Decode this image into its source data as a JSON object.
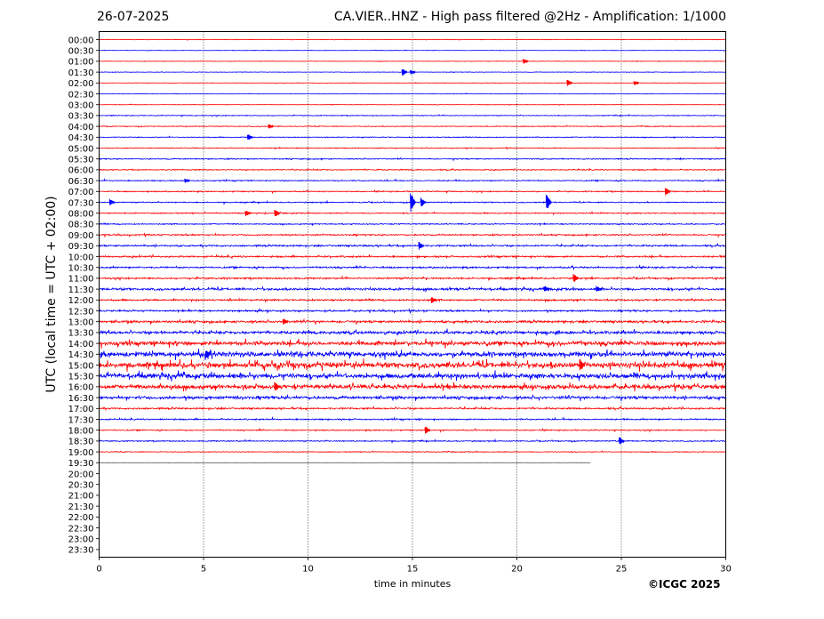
{
  "header": {
    "date": "26-07-2025",
    "title": "CA.VIER..HNZ - High pass filtered @2Hz - Amplification: 1/1000"
  },
  "footer": {
    "copyright": "©ICGC 2025"
  },
  "chart_data": {
    "type": "line",
    "title": "CA.VIER..HNZ - High pass filtered @2Hz - Amplification: 1/1000",
    "xlabel": "time in minutes",
    "ylabel": "UTC (local time = UTC + 02:00)",
    "xlim": [
      0,
      30
    ],
    "xticks": [
      0,
      5,
      10,
      15,
      20,
      25,
      30
    ],
    "vertical_gridlines": [
      5,
      10,
      15,
      20,
      25
    ],
    "row_labels": [
      "00:00",
      "00:30",
      "01:00",
      "01:30",
      "02:00",
      "02:30",
      "03:00",
      "03:30",
      "04:00",
      "04:30",
      "05:00",
      "05:30",
      "06:00",
      "06:30",
      "07:00",
      "07:30",
      "08:00",
      "08:30",
      "09:00",
      "09:30",
      "10:00",
      "10:30",
      "11:00",
      "11:30",
      "12:00",
      "12:30",
      "13:00",
      "13:30",
      "14:00",
      "14:30",
      "15:00",
      "15:30",
      "16:00",
      "16:30",
      "17:00",
      "17:30",
      "18:00",
      "18:30",
      "19:00",
      "19:30",
      "20:00",
      "20:30",
      "21:00",
      "21:30",
      "22:00",
      "22:30",
      "23:00",
      "23:30"
    ],
    "trace_colors": [
      "#ff0000",
      "#0000ff"
    ],
    "last_row_color": "#555555",
    "traces_with_data": 40,
    "last_trace_end_minute": 23.5,
    "noise_level_by_row": [
      1,
      1,
      1,
      1,
      1,
      1,
      1,
      1.5,
      1.5,
      1.5,
      1.5,
      2,
      2,
      2,
      2,
      2,
      2,
      2,
      2.5,
      3,
      3,
      3,
      3,
      4,
      3,
      3,
      4,
      5,
      7,
      8,
      9,
      8,
      7,
      5,
      3,
      2.5,
      2,
      2,
      1.5,
      0.5
    ],
    "events": [
      {
        "row": "01:00",
        "minute": 20.3,
        "amplitude": 3
      },
      {
        "row": "01:30",
        "minute": 14.5,
        "amplitude": 5
      },
      {
        "row": "01:30",
        "minute": 14.9,
        "amplitude": 3
      },
      {
        "row": "02:00",
        "minute": 22.4,
        "amplitude": 4
      },
      {
        "row": "02:00",
        "minute": 25.6,
        "amplitude": 3
      },
      {
        "row": "04:00",
        "minute": 8.1,
        "amplitude": 3
      },
      {
        "row": "04:30",
        "minute": 7.1,
        "amplitude": 4
      },
      {
        "row": "06:30",
        "minute": 4.1,
        "amplitude": 3
      },
      {
        "row": "07:00",
        "minute": 27.1,
        "amplitude": 5
      },
      {
        "row": "07:30",
        "minute": 0.5,
        "amplitude": 4
      },
      {
        "row": "07:30",
        "minute": 14.9,
        "amplitude": 12
      },
      {
        "row": "07:30",
        "minute": 15.4,
        "amplitude": 6
      },
      {
        "row": "07:30",
        "minute": 21.4,
        "amplitude": 10
      },
      {
        "row": "08:00",
        "minute": 7.0,
        "amplitude": 4
      },
      {
        "row": "08:00",
        "minute": 8.4,
        "amplitude": 5
      },
      {
        "row": "09:30",
        "minute": 15.3,
        "amplitude": 5
      },
      {
        "row": "11:00",
        "minute": 22.7,
        "amplitude": 6
      },
      {
        "row": "11:30",
        "minute": 21.3,
        "amplitude": 4
      },
      {
        "row": "11:30",
        "minute": 23.8,
        "amplitude": 4
      },
      {
        "row": "12:00",
        "minute": 15.9,
        "amplitude": 4
      },
      {
        "row": "13:00",
        "minute": 8.8,
        "amplitude": 4
      },
      {
        "row": "14:30",
        "minute": 5.1,
        "amplitude": 5
      },
      {
        "row": "15:00",
        "minute": 23.0,
        "amplitude": 8
      },
      {
        "row": "16:00",
        "minute": 8.4,
        "amplitude": 6
      },
      {
        "row": "18:00",
        "minute": 15.6,
        "amplitude": 5
      },
      {
        "row": "18:30",
        "minute": 24.9,
        "amplitude": 5
      }
    ]
  }
}
